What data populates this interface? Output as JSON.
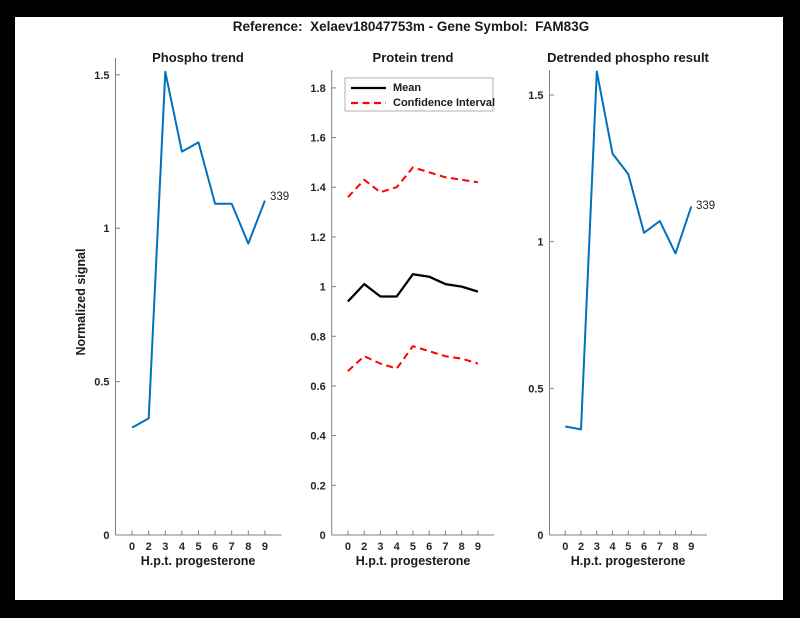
{
  "figure": {
    "title": "Reference:  Xelaev18047753m - Gene Symbol:  FAM83G",
    "frame_color": "#000000",
    "canvas_color": "#ffffff"
  },
  "colors": {
    "matlab_blue": "#0072BD",
    "ci_red": "#ff0000",
    "mean_black": "#000000",
    "axis_gray": "#808080",
    "tick_text": "#262626"
  },
  "chart_data": [
    {
      "type": "line",
      "title": "Phospho trend",
      "xlabel": "H.p.t. progesterone",
      "ylabel": "Normalized signal",
      "x_tick_labels": [
        "0",
        "2",
        "3",
        "4",
        "5",
        "6",
        "7",
        "8",
        "9"
      ],
      "y_ticks": [
        0,
        0.5,
        1,
        1.5
      ],
      "ylim": [
        0,
        1.555
      ],
      "grid": false,
      "series": [
        {
          "name": "phospho-signal",
          "color": "#0072BD",
          "dash": "none",
          "width": 2,
          "values": [
            0.35,
            0.38,
            1.51,
            1.25,
            1.28,
            1.08,
            1.08,
            0.95,
            1.09
          ]
        }
      ],
      "annotation": {
        "text": "339"
      }
    },
    {
      "type": "line",
      "title": "Protein trend",
      "xlabel": "H.p.t. progesterone",
      "ylabel": "",
      "x_tick_labels": [
        "0",
        "2",
        "3",
        "4",
        "5",
        "6",
        "7",
        "8",
        "9"
      ],
      "y_ticks": [
        0,
        0.2,
        0.4,
        0.6,
        0.8,
        1,
        1.2,
        1.4,
        1.6,
        1.8
      ],
      "ylim": [
        0,
        1.872
      ],
      "grid": false,
      "legend": {
        "position": "northwest",
        "entries": [
          {
            "label": "Mean",
            "color": "#000000",
            "dash": "none"
          },
          {
            "label": "Confidence Interval",
            "color": "#ff0000",
            "dash": "dashed"
          }
        ]
      },
      "series": [
        {
          "name": "mean",
          "color": "#000000",
          "dash": "none",
          "width": 2.3,
          "values": [
            0.94,
            1.01,
            0.96,
            0.96,
            1.05,
            1.04,
            1.01,
            1.0,
            0.98
          ]
        },
        {
          "name": "ci-upper",
          "color": "#ff0000",
          "dash": "dashed",
          "width": 2,
          "values": [
            1.36,
            1.43,
            1.38,
            1.4,
            1.48,
            1.46,
            1.44,
            1.43,
            1.42
          ]
        },
        {
          "name": "ci-lower",
          "color": "#ff0000",
          "dash": "dashed",
          "width": 2,
          "values": [
            0.66,
            0.72,
            0.69,
            0.67,
            0.76,
            0.74,
            0.72,
            0.71,
            0.69
          ]
        }
      ]
    },
    {
      "type": "line",
      "title": "Detrended phospho result",
      "xlabel": "H.p.t. progesterone",
      "ylabel": "",
      "x_tick_labels": [
        "0",
        "2",
        "3",
        "4",
        "5",
        "6",
        "7",
        "8",
        "9"
      ],
      "y_ticks": [
        0,
        0.5,
        1,
        1.5
      ],
      "ylim": [
        0,
        1.585
      ],
      "grid": false,
      "series": [
        {
          "name": "detrended-signal",
          "color": "#0072BD",
          "dash": "none",
          "width": 2,
          "values": [
            0.37,
            0.36,
            1.58,
            1.3,
            1.23,
            1.03,
            1.07,
            0.96,
            1.12
          ]
        }
      ],
      "annotation": {
        "text": "339"
      }
    }
  ]
}
